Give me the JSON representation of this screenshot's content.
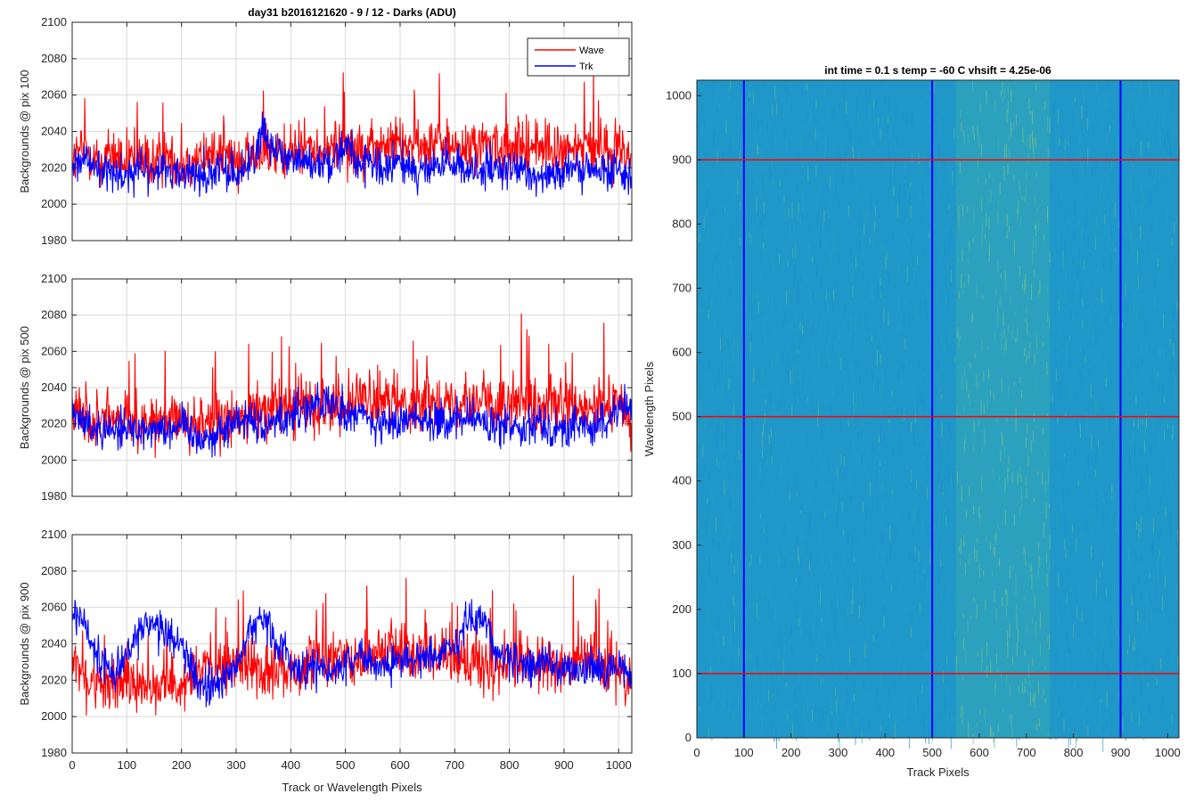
{
  "figure": {
    "left_title": "day31 b2016121620 - 9 / 12 - Darks (ADU)",
    "right_title": "int time = 0.1 s   temp = -60 C   vhsift = 4.25e-06",
    "shared_xlabel": "Track or Wavelength Pixels",
    "image_xlabel": "Track Pixels",
    "image_ylabel": "Wavelength Pixels",
    "legend": [
      "Wave",
      "Trk"
    ]
  },
  "colors": {
    "wave": "#ff0000",
    "trk": "#0000ff",
    "grid": "#d9d9d9",
    "axis": "#262626"
  },
  "chart_data": [
    {
      "type": "line",
      "title": "day31 b2016121620 - 9 / 12 - Darks (ADU)",
      "ylabel": "Backgrounds @ pix 100",
      "xlabel": "",
      "xlim": [
        0,
        1024
      ],
      "ylim": [
        1980,
        2100
      ],
      "xticks": [
        0,
        100,
        200,
        300,
        400,
        500,
        600,
        700,
        800,
        900,
        1000
      ],
      "yticks": [
        1980,
        2000,
        2020,
        2040,
        2060,
        2080,
        2100
      ],
      "grid": true,
      "legend_position": "top-right",
      "series": [
        {
          "name": "Wave",
          "color": "#ff0000",
          "x": [
            0,
            25,
            50,
            75,
            100,
            125,
            150,
            175,
            200,
            225,
            250,
            275,
            300,
            325,
            350,
            375,
            400,
            425,
            450,
            475,
            500,
            525,
            550,
            575,
            600,
            625,
            650,
            675,
            700,
            725,
            750,
            775,
            800,
            825,
            850,
            875,
            900,
            925,
            950,
            975,
            1000,
            1023
          ],
          "y": [
            2025,
            2030,
            2022,
            2028,
            2020,
            2024,
            2021,
            2026,
            2019,
            2023,
            2027,
            2030,
            2021,
            2025,
            2033,
            2024,
            2028,
            2034,
            2026,
            2030,
            2035,
            2028,
            2030,
            2032,
            2036,
            2030,
            2032,
            2034,
            2030,
            2031,
            2033,
            2030,
            2028,
            2031,
            2032,
            2029,
            2030,
            2031,
            2032,
            2030,
            2033,
            2025
          ]
        },
        {
          "name": "Trk",
          "color": "#0000ff",
          "x": [
            0,
            25,
            50,
            75,
            100,
            125,
            150,
            175,
            200,
            225,
            250,
            275,
            300,
            325,
            350,
            375,
            400,
            425,
            450,
            475,
            500,
            525,
            550,
            575,
            600,
            625,
            650,
            675,
            700,
            725,
            750,
            775,
            800,
            825,
            850,
            875,
            900,
            925,
            950,
            975,
            1000,
            1023
          ],
          "y": [
            2020,
            2025,
            2017,
            2019,
            2016,
            2019,
            2017,
            2020,
            2016,
            2018,
            2015,
            2019,
            2017,
            2022,
            2040,
            2030,
            2026,
            2024,
            2021,
            2024,
            2035,
            2022,
            2020,
            2019,
            2023,
            2020,
            2018,
            2022,
            2021,
            2019,
            2020,
            2017,
            2019,
            2018,
            2016,
            2018,
            2017,
            2019,
            2018,
            2017,
            2020,
            2017
          ]
        }
      ]
    },
    {
      "type": "line",
      "ylabel": "Backgrounds @ pix 500",
      "xlabel": "",
      "xlim": [
        0,
        1024
      ],
      "ylim": [
        1980,
        2100
      ],
      "xticks": [
        0,
        100,
        200,
        300,
        400,
        500,
        600,
        700,
        800,
        900,
        1000
      ],
      "yticks": [
        1980,
        2000,
        2020,
        2040,
        2060,
        2080,
        2100
      ],
      "grid": true,
      "series": [
        {
          "name": "Wave",
          "color": "#ff0000",
          "x": [
            0,
            25,
            50,
            75,
            100,
            125,
            150,
            175,
            200,
            225,
            250,
            275,
            300,
            325,
            350,
            375,
            400,
            425,
            450,
            475,
            500,
            525,
            550,
            575,
            600,
            625,
            650,
            675,
            700,
            725,
            750,
            775,
            800,
            825,
            850,
            875,
            900,
            925,
            950,
            975,
            1000,
            1023
          ],
          "y": [
            2030,
            2022,
            2020,
            2024,
            2022,
            2020,
            2023,
            2019,
            2024,
            2020,
            2022,
            2018,
            2024,
            2026,
            2028,
            2030,
            2025,
            2032,
            2030,
            2033,
            2029,
            2034,
            2032,
            2030,
            2035,
            2030,
            2031,
            2033,
            2030,
            2032,
            2034,
            2028,
            2031,
            2030,
            2026,
            2028,
            2030,
            2026,
            2028,
            2030,
            2034,
            2020
          ]
        },
        {
          "name": "Trk",
          "color": "#0000ff",
          "x": [
            0,
            25,
            50,
            75,
            100,
            125,
            150,
            175,
            200,
            225,
            250,
            275,
            300,
            325,
            350,
            375,
            400,
            425,
            450,
            475,
            500,
            525,
            550,
            575,
            600,
            625,
            650,
            675,
            700,
            725,
            750,
            775,
            800,
            825,
            850,
            875,
            900,
            925,
            950,
            975,
            1000,
            1023
          ],
          "y": [
            2025,
            2020,
            2018,
            2017,
            2018,
            2016,
            2019,
            2017,
            2020,
            2014,
            2012,
            2016,
            2022,
            2024,
            2018,
            2022,
            2025,
            2028,
            2032,
            2030,
            2024,
            2027,
            2020,
            2018,
            2022,
            2025,
            2023,
            2021,
            2020,
            2024,
            2022,
            2016,
            2020,
            2019,
            2022,
            2018,
            2016,
            2020,
            2018,
            2020,
            2030,
            2026
          ]
        }
      ]
    },
    {
      "type": "line",
      "ylabel": "Backgrounds @ pix 900",
      "xlabel": "Track or Wavelength Pixels",
      "xlim": [
        0,
        1024
      ],
      "ylim": [
        1980,
        2100
      ],
      "xticks": [
        0,
        100,
        200,
        300,
        400,
        500,
        600,
        700,
        800,
        900,
        1000
      ],
      "yticks": [
        1980,
        2000,
        2020,
        2040,
        2060,
        2080,
        2100
      ],
      "grid": true,
      "series": [
        {
          "name": "Wave",
          "color": "#ff0000",
          "x": [
            0,
            25,
            50,
            75,
            100,
            125,
            150,
            175,
            200,
            225,
            250,
            275,
            300,
            325,
            350,
            375,
            400,
            425,
            450,
            475,
            500,
            525,
            550,
            575,
            600,
            625,
            650,
            675,
            700,
            725,
            750,
            775,
            800,
            825,
            850,
            875,
            900,
            925,
            950,
            975,
            1000,
            1023
          ],
          "y": [
            2035,
            2020,
            2016,
            2018,
            2021,
            2015,
            2019,
            2017,
            2020,
            2022,
            2026,
            2024,
            2028,
            2030,
            2024,
            2026,
            2028,
            2026,
            2030,
            2032,
            2034,
            2030,
            2036,
            2038,
            2040,
            2034,
            2036,
            2032,
            2030,
            2033,
            2028,
            2026,
            2030,
            2032,
            2028,
            2030,
            2026,
            2028,
            2030,
            2024,
            2022,
            2020
          ]
        },
        {
          "name": "Trk",
          "color": "#0000ff",
          "x": [
            0,
            25,
            50,
            75,
            100,
            125,
            150,
            175,
            200,
            225,
            250,
            275,
            300,
            325,
            350,
            375,
            400,
            425,
            450,
            475,
            500,
            525,
            550,
            575,
            600,
            625,
            650,
            675,
            700,
            725,
            750,
            775,
            800,
            825,
            850,
            875,
            900,
            925,
            950,
            975,
            1000,
            1023
          ],
          "y": [
            2058,
            2050,
            2030,
            2025,
            2035,
            2048,
            2050,
            2045,
            2040,
            2022,
            2015,
            2018,
            2030,
            2048,
            2055,
            2040,
            2030,
            2026,
            2028,
            2024,
            2030,
            2034,
            2030,
            2028,
            2032,
            2030,
            2036,
            2034,
            2040,
            2054,
            2056,
            2036,
            2030,
            2032,
            2028,
            2030,
            2024,
            2026,
            2028,
            2024,
            2030,
            2022
          ]
        }
      ]
    },
    {
      "type": "heatmap",
      "title": "int time = 0.1 s   temp = -60 C   vhsift = 4.25e-06",
      "xlabel": "Track Pixels",
      "ylabel": "Wavelength Pixels",
      "xlim": [
        0,
        1024
      ],
      "ylim": [
        0,
        1024
      ],
      "xticks": [
        0,
        100,
        200,
        300,
        400,
        500,
        600,
        700,
        800,
        900,
        1000
      ],
      "yticks": [
        0,
        100,
        200,
        300,
        400,
        500,
        600,
        700,
        800,
        900,
        1000
      ],
      "colormap": "parula",
      "vertical_markers": [
        100,
        500,
        900
      ],
      "horizontal_markers": [
        100,
        500,
        900
      ],
      "vertical_marker_color": "#0000ff",
      "horizontal_marker_color": "#ff0000",
      "brighter_band_x": [
        550,
        750
      ]
    }
  ]
}
